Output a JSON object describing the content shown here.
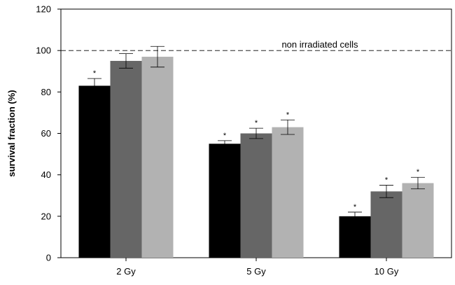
{
  "chart_data": {
    "type": "bar",
    "title": "",
    "xlabel": "",
    "ylabel": "survival fraction (%)",
    "ylim": [
      0,
      120
    ],
    "yticks": [
      0,
      20,
      40,
      60,
      80,
      100,
      120
    ],
    "grid": false,
    "legend": "none",
    "categories": [
      "2 Gy",
      "5 Gy",
      "10 Gy"
    ],
    "series": [
      {
        "color": "#000000",
        "values": [
          83,
          55,
          20
        ],
        "errors": [
          3.5,
          1.5,
          2
        ],
        "significant": [
          true,
          true,
          true
        ]
      },
      {
        "color": "#666666",
        "values": [
          95,
          60,
          32
        ],
        "errors": [
          3.5,
          2.5,
          3
        ],
        "significant": [
          false,
          true,
          true
        ]
      },
      {
        "color": "#b2b2b2",
        "values": [
          97,
          63,
          36
        ],
        "errors": [
          5,
          3.5,
          2.8
        ],
        "significant": [
          false,
          true,
          true
        ]
      }
    ],
    "reference_line": {
      "value": 100,
      "label": "non  irradiated  cells",
      "style": "dashed"
    },
    "significance_marker": "*"
  }
}
